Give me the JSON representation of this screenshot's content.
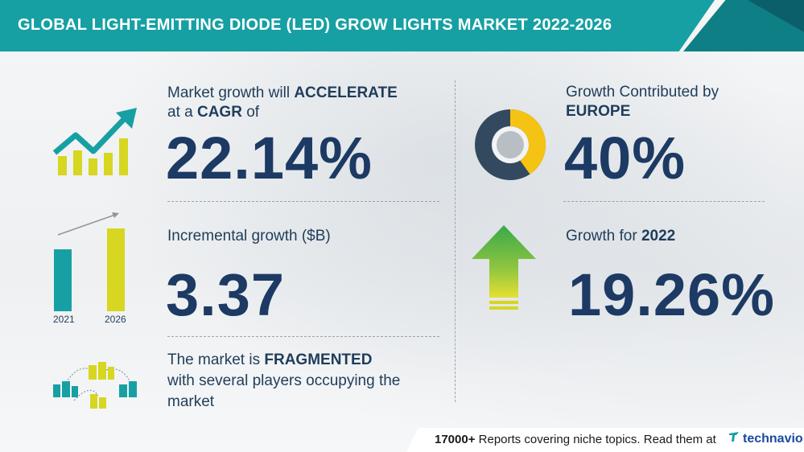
{
  "header": {
    "title": "GLOBAL LIGHT-EMITTING DIODE (LED) GROW LIGHTS MARKET 2022-2026"
  },
  "cagr": {
    "line1_prefix": "Market growth will",
    "line1_emph": "ACCELERATE",
    "line2_prefix": "at a",
    "line2_emph": "CAGR",
    "line2_suffix": "of",
    "value": "22.14%"
  },
  "incremental": {
    "label": "Incremental growth ($B)",
    "value": "3.37",
    "bar_years": [
      "2021",
      "2026"
    ]
  },
  "fragmented": {
    "line1_prefix": "The market is",
    "line1_emph": "FRAGMENTED",
    "line2": "with several players occupying the",
    "line3": "market"
  },
  "europe": {
    "line1": "Growth Contributed by",
    "line2": "EUROPE",
    "value": "40%",
    "share": 0.4
  },
  "growth2022": {
    "label_prefix": "Growth for",
    "label_year": "2022",
    "value": "19.26%"
  },
  "footer": {
    "count": "17000+",
    "text": "Reports covering niche topics. Read them at",
    "logo_text": "technavio"
  },
  "colors": {
    "teal": "#17a0a3",
    "navy": "#1c3a63",
    "yellow": "#d7d620",
    "gold": "#f4c313",
    "green_arrow": "#39a94a"
  },
  "icons": {
    "trend": "growth-chart-icon",
    "bars": "bar-compare-icon",
    "buildings": "buildings-network-icon",
    "donut": "donut-share-icon",
    "arrow": "up-arrow-icon"
  }
}
